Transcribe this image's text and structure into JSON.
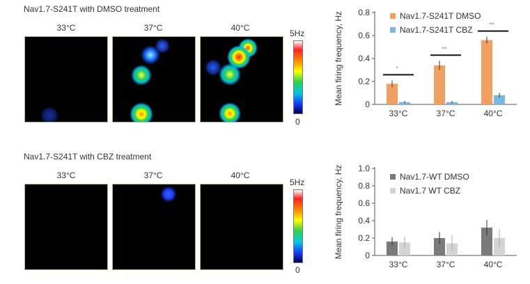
{
  "top": {
    "title": "Nav1.7-S241T with DMSO treatment",
    "temps": [
      "33°C",
      "37°C",
      "40°C"
    ],
    "scale_max": "5Hz",
    "scale_min": "0"
  },
  "bottom": {
    "title": "Nav1.7-S241T with CBZ treatment",
    "temps": [
      "33°C",
      "37°C",
      "40°C"
    ],
    "scale_max": "5Hz",
    "scale_min": "0"
  },
  "chart_data": [
    {
      "type": "bar",
      "title": "",
      "xlabel": "",
      "ylabel": "Mean firing frequency, Hz",
      "categories": [
        "33°C",
        "37°C",
        "40°C"
      ],
      "ylim": [
        0,
        0.8
      ],
      "yticks": [
        "0",
        "0.2",
        "0.4",
        "0.6",
        "0.8"
      ],
      "series": [
        {
          "name": "Nav1.7-S241T DMSO",
          "values": [
            0.18,
            0.34,
            0.56
          ],
          "errors": [
            0.03,
            0.04,
            0.03
          ],
          "color": "#f0a060"
        },
        {
          "name": "Nav1.7-S241T CBZ",
          "values": [
            0.02,
            0.02,
            0.08
          ],
          "errors": [
            0.01,
            0.01,
            0.02
          ],
          "color": "#7ab8e0"
        }
      ],
      "significance": [
        "*",
        "**",
        "**"
      ],
      "legend": "top-right"
    },
    {
      "type": "bar",
      "title": "",
      "xlabel": "",
      "ylabel": "Mean firing frequency, Hz",
      "categories": [
        "33°C",
        "37°C",
        "40°C"
      ],
      "ylim": [
        0,
        1.0
      ],
      "yticks": [
        "0",
        "0.2",
        "0.4",
        "0.6",
        "0.8",
        "1.0"
      ],
      "series": [
        {
          "name": "Nav1.7-WT DMSO",
          "values": [
            0.16,
            0.2,
            0.32
          ],
          "errors": [
            0.05,
            0.07,
            0.09
          ],
          "color": "#7a7a7a"
        },
        {
          "name": "Nav1.7 WT CBZ",
          "values": [
            0.15,
            0.14,
            0.2
          ],
          "errors": [
            0.07,
            0.09,
            0.1
          ],
          "color": "#d4d4d4"
        }
      ],
      "legend": "top-right"
    }
  ]
}
